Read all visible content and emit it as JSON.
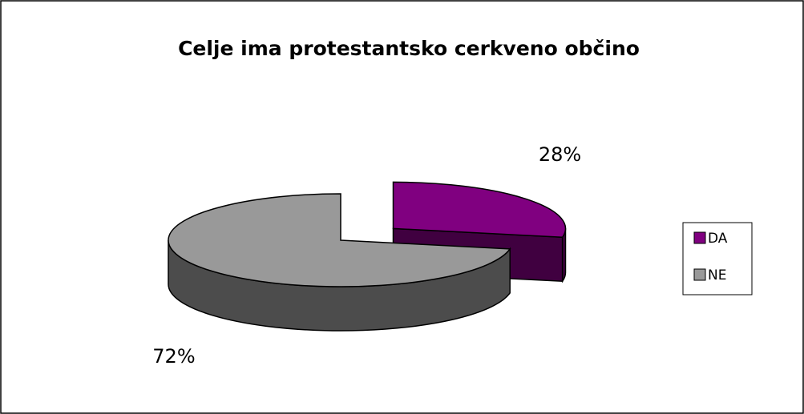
{
  "chart_data": {
    "type": "pie",
    "title": "Celje ima protestantsko cerkveno občino",
    "categories": [
      "DA",
      "NE"
    ],
    "values": [
      28,
      72
    ],
    "value_labels": [
      "28%",
      "72%"
    ],
    "colors": [
      "#800080",
      "#999999"
    ],
    "legend": "right"
  }
}
